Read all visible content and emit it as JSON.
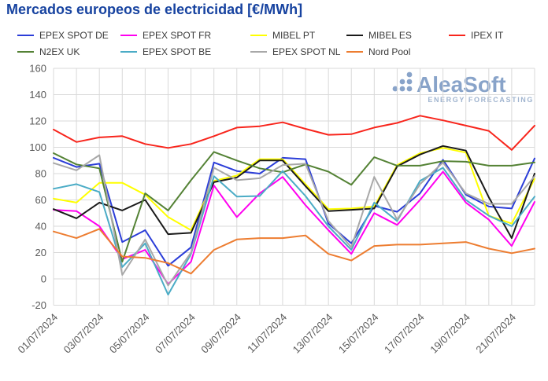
{
  "title": "Mercados europeos de electricidad [€/MWh]",
  "watermark": {
    "brand": "AleaSoft",
    "tagline": "ENERGY FORECASTING"
  },
  "axis_color": "#595959",
  "grid_color": "#d9d9d9",
  "chart_data": {
    "type": "line",
    "title": "Mercados europeos de electricidad [€/MWh]",
    "xlabel": "",
    "ylabel": "€/MWh",
    "ylim": [
      -20,
      160
    ],
    "y_ticks": [
      -20,
      0,
      20,
      40,
      60,
      80,
      100,
      120,
      140,
      160
    ],
    "grid": true,
    "legend_position": "top",
    "x": [
      "01/07/2024",
      "02/07/2024",
      "03/07/2024",
      "04/07/2024",
      "05/07/2024",
      "06/07/2024",
      "07/07/2024",
      "08/07/2024",
      "09/07/2024",
      "10/07/2024",
      "11/07/2024",
      "12/07/2024",
      "13/07/2024",
      "14/07/2024",
      "15/07/2024",
      "16/07/2024",
      "17/07/2024",
      "18/07/2024",
      "19/07/2024",
      "20/07/2024",
      "21/07/2024",
      "22/07/2024"
    ],
    "x_tick_labels": [
      "01/07/2024",
      "03/07/2024",
      "05/07/2024",
      "07/07/2024",
      "09/07/2024",
      "11/07/2024",
      "13/07/2024",
      "15/07/2024",
      "17/07/2024",
      "19/07/2024",
      "21/07/2024"
    ],
    "series": [
      {
        "name": "EPEX SPOT DE",
        "color": "#2b3dd8",
        "values": [
          92,
          85,
          87.5,
          28,
          37,
          10,
          24,
          88.5,
          82,
          80,
          92,
          91,
          42,
          27,
          55.5,
          51,
          65,
          90.5,
          64,
          55,
          53.5,
          91.5
        ]
      },
      {
        "name": "EPEX SPOT FR",
        "color": "#ff00f0",
        "values": [
          52.5,
          51.5,
          40,
          15,
          22,
          -4,
          13,
          71,
          47,
          65,
          77.5,
          56,
          37,
          19,
          50,
          41,
          60,
          81.5,
          58,
          45,
          25,
          58.5
        ]
      },
      {
        "name": "MIBEL PT",
        "color": "#ffff00",
        "values": [
          61,
          58,
          73,
          73,
          64,
          47,
          37,
          74.5,
          78.5,
          91,
          91,
          72,
          53,
          53.5,
          55,
          86.5,
          95.5,
          99.5,
          96,
          48,
          42,
          76
        ]
      },
      {
        "name": "MIBEL ES",
        "color": "#1a1a1a",
        "values": [
          53,
          46,
          58,
          52,
          60,
          34,
          35,
          73.5,
          77,
          90,
          90,
          70.5,
          51.5,
          52.5,
          53.5,
          85.5,
          94.5,
          101,
          97.5,
          62,
          31,
          80
        ]
      },
      {
        "name": "IPEX IT",
        "color": "#f8251c",
        "values": [
          113.5,
          104,
          107.5,
          108.5,
          102.5,
          99.5,
          102.5,
          108.5,
          115,
          116,
          119,
          114,
          109.5,
          110,
          115,
          118.5,
          124,
          120.5,
          116.5,
          112.5,
          98,
          116.5
        ]
      },
      {
        "name": "N2EX UK",
        "color": "#548235",
        "values": [
          95.5,
          87,
          84,
          13,
          65,
          52,
          75,
          96.5,
          90,
          84,
          81,
          87,
          81.5,
          71.5,
          92.5,
          86,
          86,
          89.5,
          89,
          86,
          86,
          88.5
        ]
      },
      {
        "name": "EPEX SPOT BE",
        "color": "#4bacc6",
        "values": [
          68.5,
          72,
          66,
          9,
          27,
          -12,
          19,
          78,
          62.5,
          63,
          82,
          63,
          40,
          22,
          58,
          44,
          74.5,
          84.5,
          60,
          48,
          40,
          62.5
        ]
      },
      {
        "name": "EPEX SPOT NL",
        "color": "#a8a8a8",
        "values": [
          88,
          82.5,
          94,
          3,
          30,
          -5,
          20,
          84.5,
          75,
          76.5,
          86.5,
          87.5,
          44,
          24,
          77.5,
          45,
          72,
          88.5,
          65,
          57,
          57,
          78
        ]
      },
      {
        "name": "Nord Pool",
        "color": "#ed7d31",
        "values": [
          36,
          31,
          38,
          17,
          16,
          12,
          4,
          22,
          30,
          31,
          31,
          33,
          19,
          14,
          25,
          26,
          26,
          27,
          28,
          23,
          19.5,
          23
        ]
      }
    ]
  }
}
